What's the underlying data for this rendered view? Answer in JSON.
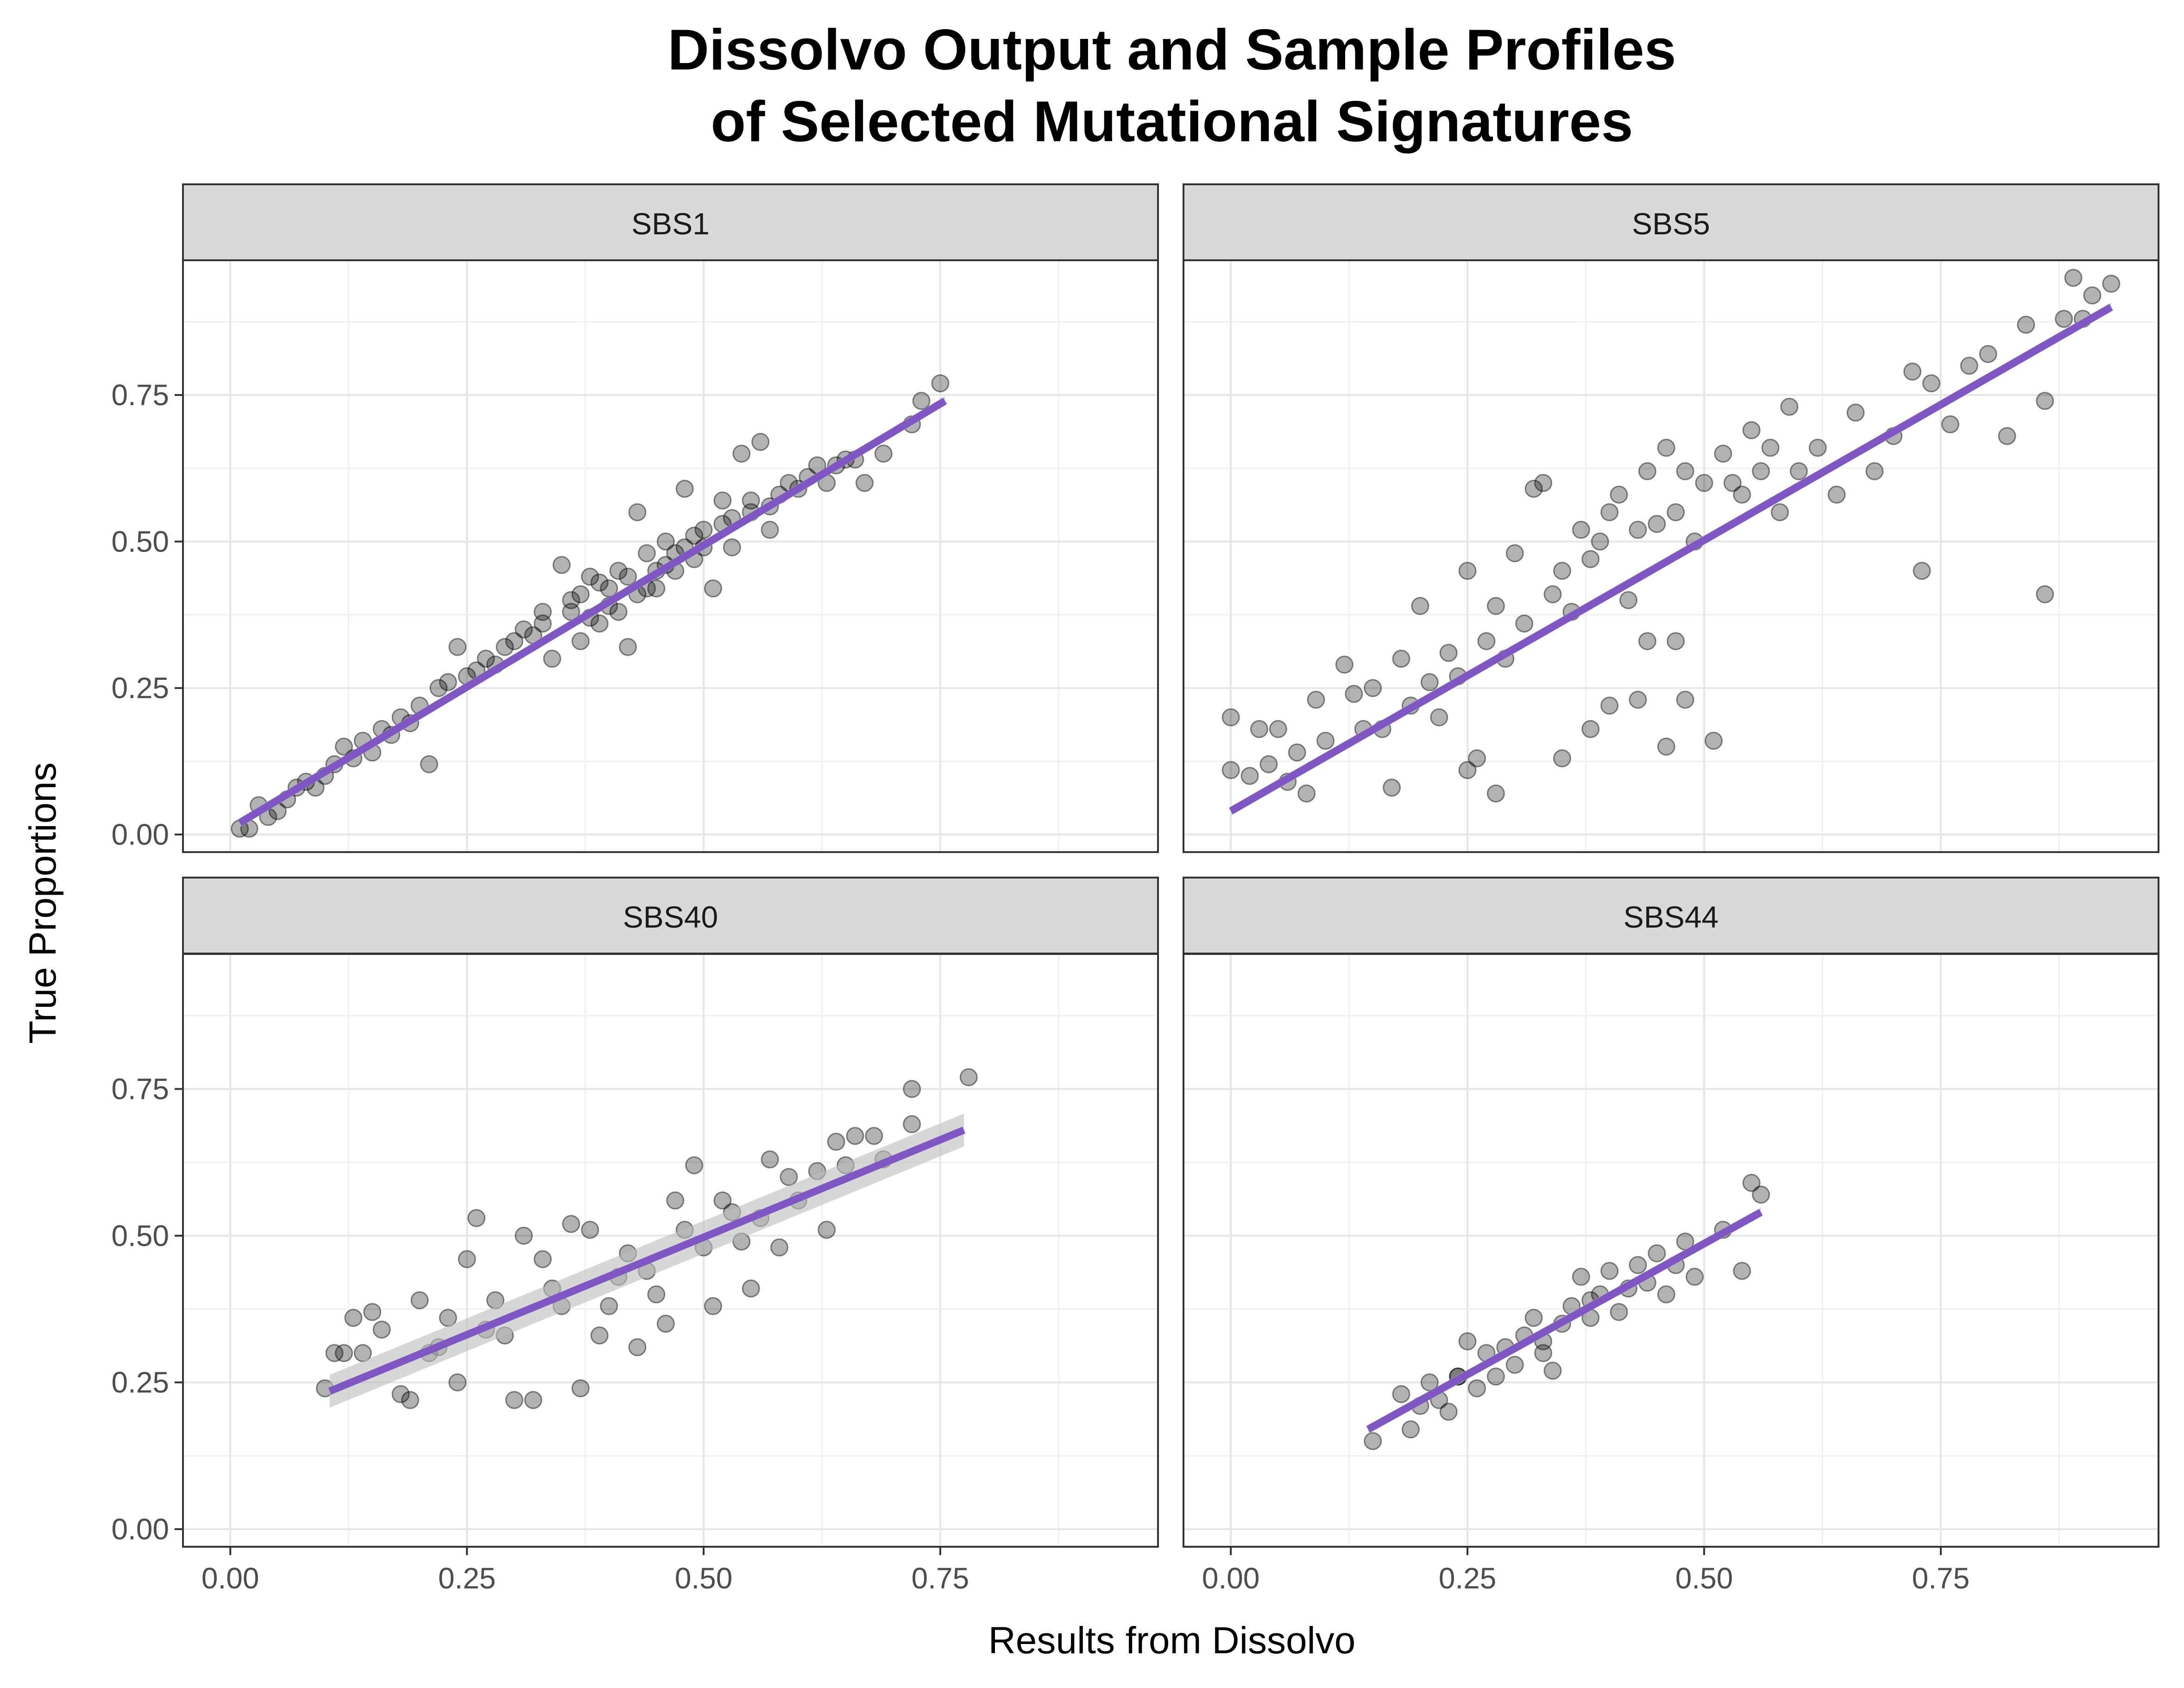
{
  "chart_data": {
    "type": "scatter",
    "title": "Dissolvo Output and Sample Profiles\nof Selected Mutational Signatures",
    "title_lines": [
      "Dissolvo Output and Sample Profiles",
      "of Selected Mutational Signatures"
    ],
    "xlabel": "Results from Dissolvo",
    "ylabel": "True Proportions",
    "xlim": [
      -0.05,
      0.98
    ],
    "ylim": [
      -0.03,
      0.98
    ],
    "x_ticks": [
      0.0,
      0.25,
      0.5,
      0.75
    ],
    "x_tick_labels": [
      "0.00",
      "0.25",
      "0.50",
      "0.75"
    ],
    "y_ticks": [
      0.0,
      0.25,
      0.5,
      0.75
    ],
    "y_tick_labels": [
      "0.00",
      "0.25",
      "0.50",
      "0.75"
    ],
    "grid": true,
    "point_color": "#000000",
    "point_opacity": 0.3,
    "fit_line_color": "#7e57c2",
    "ribbon_color": "#bdbdbd",
    "panels": [
      {
        "name": "SBS1",
        "fit": {
          "x": [
            0.01,
            0.755
          ],
          "y": [
            0.02,
            0.74
          ]
        },
        "points": [
          [
            0.01,
            0.01
          ],
          [
            0.02,
            0.01
          ],
          [
            0.03,
            0.05
          ],
          [
            0.04,
            0.03
          ],
          [
            0.05,
            0.04
          ],
          [
            0.06,
            0.06
          ],
          [
            0.07,
            0.08
          ],
          [
            0.08,
            0.09
          ],
          [
            0.09,
            0.08
          ],
          [
            0.1,
            0.1
          ],
          [
            0.11,
            0.12
          ],
          [
            0.12,
            0.15
          ],
          [
            0.13,
            0.13
          ],
          [
            0.14,
            0.16
          ],
          [
            0.15,
            0.14
          ],
          [
            0.16,
            0.18
          ],
          [
            0.17,
            0.17
          ],
          [
            0.18,
            0.2
          ],
          [
            0.19,
            0.19
          ],
          [
            0.2,
            0.22
          ],
          [
            0.21,
            0.12
          ],
          [
            0.22,
            0.25
          ],
          [
            0.23,
            0.26
          ],
          [
            0.24,
            0.32
          ],
          [
            0.25,
            0.27
          ],
          [
            0.26,
            0.28
          ],
          [
            0.27,
            0.3
          ],
          [
            0.28,
            0.29
          ],
          [
            0.29,
            0.32
          ],
          [
            0.3,
            0.33
          ],
          [
            0.31,
            0.35
          ],
          [
            0.32,
            0.34
          ],
          [
            0.33,
            0.38
          ],
          [
            0.34,
            0.3
          ],
          [
            0.35,
            0.46
          ],
          [
            0.36,
            0.38
          ],
          [
            0.37,
            0.41
          ],
          [
            0.38,
            0.37
          ],
          [
            0.39,
            0.43
          ],
          [
            0.4,
            0.39
          ],
          [
            0.41,
            0.45
          ],
          [
            0.42,
            0.32
          ],
          [
            0.43,
            0.55
          ],
          [
            0.44,
            0.48
          ],
          [
            0.45,
            0.42
          ],
          [
            0.46,
            0.5
          ],
          [
            0.47,
            0.45
          ],
          [
            0.48,
            0.59
          ],
          [
            0.49,
            0.47
          ],
          [
            0.5,
            0.52
          ],
          [
            0.51,
            0.42
          ],
          [
            0.52,
            0.57
          ],
          [
            0.53,
            0.49
          ],
          [
            0.54,
            0.65
          ],
          [
            0.55,
            0.55
          ],
          [
            0.56,
            0.67
          ],
          [
            0.57,
            0.52
          ],
          [
            0.58,
            0.58
          ],
          [
            0.59,
            0.6
          ],
          [
            0.6,
            0.59
          ],
          [
            0.61,
            0.61
          ],
          [
            0.62,
            0.63
          ],
          [
            0.63,
            0.6
          ],
          [
            0.64,
            0.63
          ],
          [
            0.65,
            0.64
          ],
          [
            0.66,
            0.64
          ],
          [
            0.67,
            0.6
          ],
          [
            0.69,
            0.65
          ],
          [
            0.72,
            0.7
          ],
          [
            0.73,
            0.74
          ],
          [
            0.75,
            0.77
          ],
          [
            0.33,
            0.36
          ],
          [
            0.36,
            0.4
          ],
          [
            0.38,
            0.44
          ],
          [
            0.4,
            0.42
          ],
          [
            0.42,
            0.44
          ],
          [
            0.44,
            0.42
          ],
          [
            0.46,
            0.46
          ],
          [
            0.48,
            0.49
          ],
          [
            0.5,
            0.49
          ],
          [
            0.52,
            0.53
          ],
          [
            0.37,
            0.33
          ],
          [
            0.39,
            0.36
          ],
          [
            0.41,
            0.38
          ],
          [
            0.43,
            0.41
          ],
          [
            0.45,
            0.45
          ],
          [
            0.47,
            0.48
          ],
          [
            0.49,
            0.51
          ],
          [
            0.53,
            0.54
          ],
          [
            0.55,
            0.57
          ],
          [
            0.57,
            0.56
          ]
        ]
      },
      {
        "name": "SBS5",
        "fit": {
          "x": [
            0.0,
            0.93
          ],
          "y": [
            0.04,
            0.9
          ]
        },
        "points": [
          [
            0.0,
            0.2
          ],
          [
            0.0,
            0.11
          ],
          [
            0.02,
            0.1
          ],
          [
            0.03,
            0.18
          ],
          [
            0.04,
            0.12
          ],
          [
            0.05,
            0.18
          ],
          [
            0.06,
            0.09
          ],
          [
            0.07,
            0.14
          ],
          [
            0.08,
            0.07
          ],
          [
            0.09,
            0.23
          ],
          [
            0.1,
            0.16
          ],
          [
            0.12,
            0.29
          ],
          [
            0.13,
            0.24
          ],
          [
            0.14,
            0.18
          ],
          [
            0.15,
            0.25
          ],
          [
            0.16,
            0.18
          ],
          [
            0.17,
            0.08
          ],
          [
            0.18,
            0.3
          ],
          [
            0.19,
            0.22
          ],
          [
            0.2,
            0.39
          ],
          [
            0.21,
            0.26
          ],
          [
            0.22,
            0.2
          ],
          [
            0.23,
            0.31
          ],
          [
            0.24,
            0.27
          ],
          [
            0.25,
            0.45
          ],
          [
            0.26,
            0.13
          ],
          [
            0.27,
            0.33
          ],
          [
            0.28,
            0.39
          ],
          [
            0.29,
            0.3
          ],
          [
            0.3,
            0.48
          ],
          [
            0.31,
            0.36
          ],
          [
            0.32,
            0.59
          ],
          [
            0.33,
            0.6
          ],
          [
            0.34,
            0.41
          ],
          [
            0.35,
            0.45
          ],
          [
            0.36,
            0.38
          ],
          [
            0.37,
            0.52
          ],
          [
            0.38,
            0.47
          ],
          [
            0.39,
            0.5
          ],
          [
            0.4,
            0.55
          ],
          [
            0.41,
            0.58
          ],
          [
            0.42,
            0.4
          ],
          [
            0.43,
            0.52
          ],
          [
            0.44,
            0.62
          ],
          [
            0.45,
            0.53
          ],
          [
            0.46,
            0.66
          ],
          [
            0.47,
            0.55
          ],
          [
            0.48,
            0.62
          ],
          [
            0.49,
            0.5
          ],
          [
            0.5,
            0.6
          ],
          [
            0.51,
            0.16
          ],
          [
            0.52,
            0.65
          ],
          [
            0.53,
            0.6
          ],
          [
            0.54,
            0.58
          ],
          [
            0.55,
            0.69
          ],
          [
            0.56,
            0.62
          ],
          [
            0.57,
            0.66
          ],
          [
            0.58,
            0.55
          ],
          [
            0.59,
            0.73
          ],
          [
            0.6,
            0.62
          ],
          [
            0.62,
            0.66
          ],
          [
            0.64,
            0.58
          ],
          [
            0.66,
            0.72
          ],
          [
            0.68,
            0.62
          ],
          [
            0.7,
            0.68
          ],
          [
            0.72,
            0.79
          ],
          [
            0.73,
            0.45
          ],
          [
            0.74,
            0.77
          ],
          [
            0.76,
            0.7
          ],
          [
            0.78,
            0.8
          ],
          [
            0.8,
            0.82
          ],
          [
            0.82,
            0.68
          ],
          [
            0.84,
            0.87
          ],
          [
            0.86,
            0.74
          ],
          [
            0.86,
            0.41
          ],
          [
            0.88,
            0.88
          ],
          [
            0.89,
            0.95
          ],
          [
            0.9,
            0.88
          ],
          [
            0.91,
            0.92
          ],
          [
            0.93,
            0.94
          ],
          [
            0.44,
            0.33
          ],
          [
            0.46,
            0.15
          ],
          [
            0.47,
            0.33
          ],
          [
            0.48,
            0.23
          ],
          [
            0.43,
            0.23
          ],
          [
            0.4,
            0.22
          ],
          [
            0.38,
            0.18
          ],
          [
            0.35,
            0.13
          ],
          [
            0.28,
            0.07
          ],
          [
            0.25,
            0.11
          ]
        ]
      },
      {
        "name": "SBS40",
        "fit": {
          "x": [
            0.105,
            0.775
          ],
          "y": [
            0.235,
            0.68
          ]
        },
        "points": [
          [
            0.1,
            0.24
          ],
          [
            0.11,
            0.3
          ],
          [
            0.12,
            0.3
          ],
          [
            0.13,
            0.36
          ],
          [
            0.14,
            0.3
          ],
          [
            0.15,
            0.37
          ],
          [
            0.16,
            0.34
          ],
          [
            0.18,
            0.23
          ],
          [
            0.19,
            0.22
          ],
          [
            0.2,
            0.39
          ],
          [
            0.21,
            0.3
          ],
          [
            0.22,
            0.31
          ],
          [
            0.23,
            0.36
          ],
          [
            0.24,
            0.25
          ],
          [
            0.25,
            0.46
          ],
          [
            0.26,
            0.53
          ],
          [
            0.27,
            0.34
          ],
          [
            0.28,
            0.39
          ],
          [
            0.29,
            0.33
          ],
          [
            0.3,
            0.22
          ],
          [
            0.31,
            0.5
          ],
          [
            0.32,
            0.22
          ],
          [
            0.33,
            0.46
          ],
          [
            0.34,
            0.41
          ],
          [
            0.35,
            0.38
          ],
          [
            0.36,
            0.52
          ],
          [
            0.37,
            0.24
          ],
          [
            0.38,
            0.51
          ],
          [
            0.39,
            0.33
          ],
          [
            0.4,
            0.38
          ],
          [
            0.41,
            0.43
          ],
          [
            0.42,
            0.47
          ],
          [
            0.43,
            0.31
          ],
          [
            0.44,
            0.44
          ],
          [
            0.45,
            0.4
          ],
          [
            0.46,
            0.35
          ],
          [
            0.47,
            0.56
          ],
          [
            0.48,
            0.51
          ],
          [
            0.49,
            0.62
          ],
          [
            0.5,
            0.48
          ],
          [
            0.51,
            0.38
          ],
          [
            0.52,
            0.56
          ],
          [
            0.53,
            0.54
          ],
          [
            0.54,
            0.49
          ],
          [
            0.55,
            0.41
          ],
          [
            0.56,
            0.53
          ],
          [
            0.57,
            0.63
          ],
          [
            0.58,
            0.48
          ],
          [
            0.59,
            0.6
          ],
          [
            0.6,
            0.56
          ],
          [
            0.62,
            0.61
          ],
          [
            0.63,
            0.51
          ],
          [
            0.64,
            0.66
          ],
          [
            0.65,
            0.62
          ],
          [
            0.66,
            0.67
          ],
          [
            0.68,
            0.67
          ],
          [
            0.69,
            0.63
          ],
          [
            0.72,
            0.75
          ],
          [
            0.72,
            0.69
          ],
          [
            0.78,
            0.77
          ]
        ]
      },
      {
        "name": "SBS44",
        "fit": {
          "x": [
            0.145,
            0.56
          ],
          "y": [
            0.17,
            0.54
          ]
        },
        "points": [
          [
            0.15,
            0.15
          ],
          [
            0.18,
            0.23
          ],
          [
            0.19,
            0.17
          ],
          [
            0.2,
            0.21
          ],
          [
            0.21,
            0.25
          ],
          [
            0.22,
            0.22
          ],
          [
            0.23,
            0.2
          ],
          [
            0.24,
            0.26
          ],
          [
            0.25,
            0.32
          ],
          [
            0.26,
            0.24
          ],
          [
            0.27,
            0.3
          ],
          [
            0.28,
            0.26
          ],
          [
            0.29,
            0.31
          ],
          [
            0.3,
            0.28
          ],
          [
            0.31,
            0.33
          ],
          [
            0.32,
            0.36
          ],
          [
            0.33,
            0.3
          ],
          [
            0.34,
            0.27
          ],
          [
            0.35,
            0.35
          ],
          [
            0.36,
            0.38
          ],
          [
            0.37,
            0.43
          ],
          [
            0.38,
            0.36
          ],
          [
            0.39,
            0.4
          ],
          [
            0.4,
            0.44
          ],
          [
            0.41,
            0.37
          ],
          [
            0.42,
            0.41
          ],
          [
            0.43,
            0.45
          ],
          [
            0.44,
            0.42
          ],
          [
            0.45,
            0.47
          ],
          [
            0.46,
            0.4
          ],
          [
            0.47,
            0.45
          ],
          [
            0.48,
            0.49
          ],
          [
            0.49,
            0.43
          ],
          [
            0.52,
            0.51
          ],
          [
            0.54,
            0.44
          ],
          [
            0.55,
            0.59
          ],
          [
            0.56,
            0.57
          ],
          [
            0.24,
            0.26
          ],
          [
            0.33,
            0.32
          ],
          [
            0.38,
            0.39
          ]
        ]
      }
    ]
  }
}
